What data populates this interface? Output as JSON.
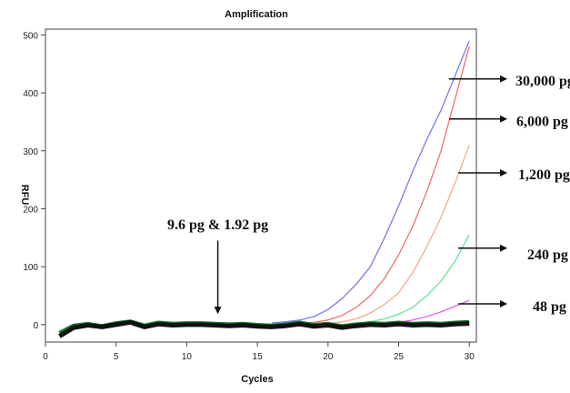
{
  "chart_data": {
    "type": "line",
    "title": "Amplification",
    "xlabel": "Cycles",
    "ylabel": "RFU",
    "xlim": [
      0,
      30.5
    ],
    "ylim": [
      -30,
      510
    ],
    "x_ticks": [
      0,
      5,
      10,
      15,
      20,
      25,
      30
    ],
    "y_ticks": [
      0,
      100,
      200,
      300,
      400,
      500
    ],
    "series": [
      {
        "color": "#7b7bf0",
        "x": [
          16,
          17,
          18,
          19,
          20,
          21,
          22,
          23,
          24,
          25,
          26,
          27,
          28,
          29,
          30
        ],
        "y": [
          3,
          5,
          8,
          14,
          26,
          45,
          70,
          100,
          150,
          205,
          265,
          320,
          370,
          430,
          490
        ]
      },
      {
        "color": "#f07070",
        "x": [
          18,
          19,
          20,
          21,
          22,
          23,
          24,
          25,
          26,
          27,
          28,
          29,
          30
        ],
        "y": [
          2,
          4,
          8,
          16,
          30,
          50,
          80,
          120,
          170,
          230,
          300,
          390,
          480
        ]
      },
      {
        "color": "#f9a98b",
        "x": [
          20,
          21,
          22,
          23,
          24,
          25,
          26,
          27,
          28,
          29,
          30
        ],
        "y": [
          2,
          5,
          10,
          20,
          35,
          55,
          90,
          135,
          185,
          245,
          310
        ]
      },
      {
        "color": "#66e29c",
        "x": [
          22,
          23,
          24,
          25,
          26,
          27,
          28,
          29,
          30
        ],
        "y": [
          2,
          5,
          10,
          18,
          30,
          50,
          75,
          110,
          155
        ]
      },
      {
        "color": "#e463e4",
        "x": [
          24,
          25,
          26,
          27,
          28,
          29,
          30
        ],
        "y": [
          2,
          4,
          8,
          14,
          22,
          32,
          42
        ]
      },
      {
        "color": "#0f7a2c",
        "x": [
          1,
          2,
          3,
          4,
          5,
          6,
          7,
          8,
          9,
          10,
          11,
          12,
          13,
          14,
          15,
          16,
          17,
          18,
          19,
          20,
          21,
          22,
          23,
          24,
          25,
          26,
          27,
          28,
          29,
          30
        ],
        "y": [
          -15,
          -2,
          1,
          -3,
          2,
          5,
          -2,
          3,
          1,
          2,
          2,
          1,
          0,
          1,
          -1,
          -2,
          0,
          3,
          -1,
          1,
          -3,
          0,
          2,
          1,
          3,
          1,
          2,
          1,
          3,
          4
        ]
      },
      {
        "color": "#111111",
        "x": [
          1,
          2,
          3,
          4,
          5,
          6,
          7,
          8,
          9,
          10,
          11,
          12,
          13,
          14,
          15,
          16,
          17,
          18,
          19,
          20,
          21,
          22,
          23,
          24,
          25,
          26,
          27,
          28,
          29,
          30
        ],
        "y": [
          -20,
          -5,
          -1,
          -4,
          0,
          4,
          -4,
          1,
          -1,
          0,
          0,
          -1,
          -2,
          -1,
          -3,
          -4,
          -2,
          1,
          -3,
          -1,
          -5,
          -2,
          0,
          -1,
          1,
          -1,
          0,
          -1,
          1,
          2
        ]
      }
    ],
    "annotations": [
      {
        "text": "30,000 pg",
        "arrow_x": 29.8,
        "arrow_y": 424
      },
      {
        "text": "6,000 pg",
        "arrow_x": 29.8,
        "arrow_y": 355
      },
      {
        "text": "1,200 pg",
        "arrow_x": 29.8,
        "arrow_y": 262
      },
      {
        "text": "240 pg",
        "arrow_x": 29.8,
        "arrow_y": 132
      },
      {
        "text": "48 pg",
        "arrow_x": 29.8,
        "arrow_y": 36
      },
      {
        "text": "9.6 pg & 1.92 pg",
        "arrow_x": 12.2,
        "arrow_y": 20
      }
    ]
  }
}
